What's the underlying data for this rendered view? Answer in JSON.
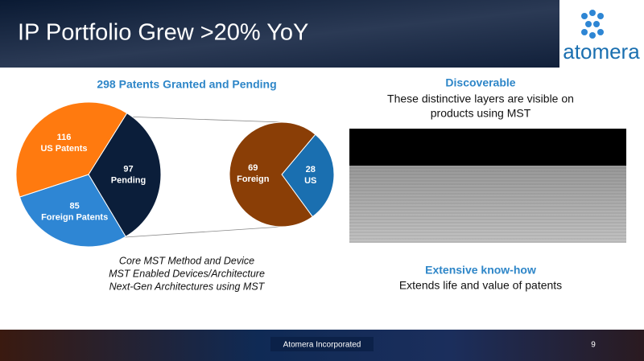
{
  "header": {
    "title": "IP Portfolio Grew >20% YoY",
    "logo": "atomera"
  },
  "chart_data": [
    {
      "type": "pie",
      "title": "298 Patents Granted and Pending",
      "categories": [
        "Pending",
        "Foreign Patents",
        "US Patents"
      ],
      "values": [
        97,
        85,
        116
      ],
      "colors": [
        "#0b1e3a",
        "#2e86d4",
        "#ff7a0f"
      ]
    },
    {
      "type": "pie",
      "categories": [
        "US",
        "Foreign"
      ],
      "values": [
        28,
        69
      ],
      "colors": [
        "#1a6fb0",
        "#8a3e06"
      ]
    }
  ],
  "methods": [
    "Core MST Method and Device",
    "MST Enabled Devices/Architecture",
    "Next-Gen Architectures using MST"
  ],
  "discoverable": {
    "heading": "Discoverable",
    "lines": [
      "These distinctive layers are visible on",
      "products using MST"
    ]
  },
  "knowhow": {
    "heading": "Extensive know-how",
    "text": "Extends life and value of patents"
  },
  "footer": {
    "company": "Atomera Incorporated",
    "page": "9"
  }
}
